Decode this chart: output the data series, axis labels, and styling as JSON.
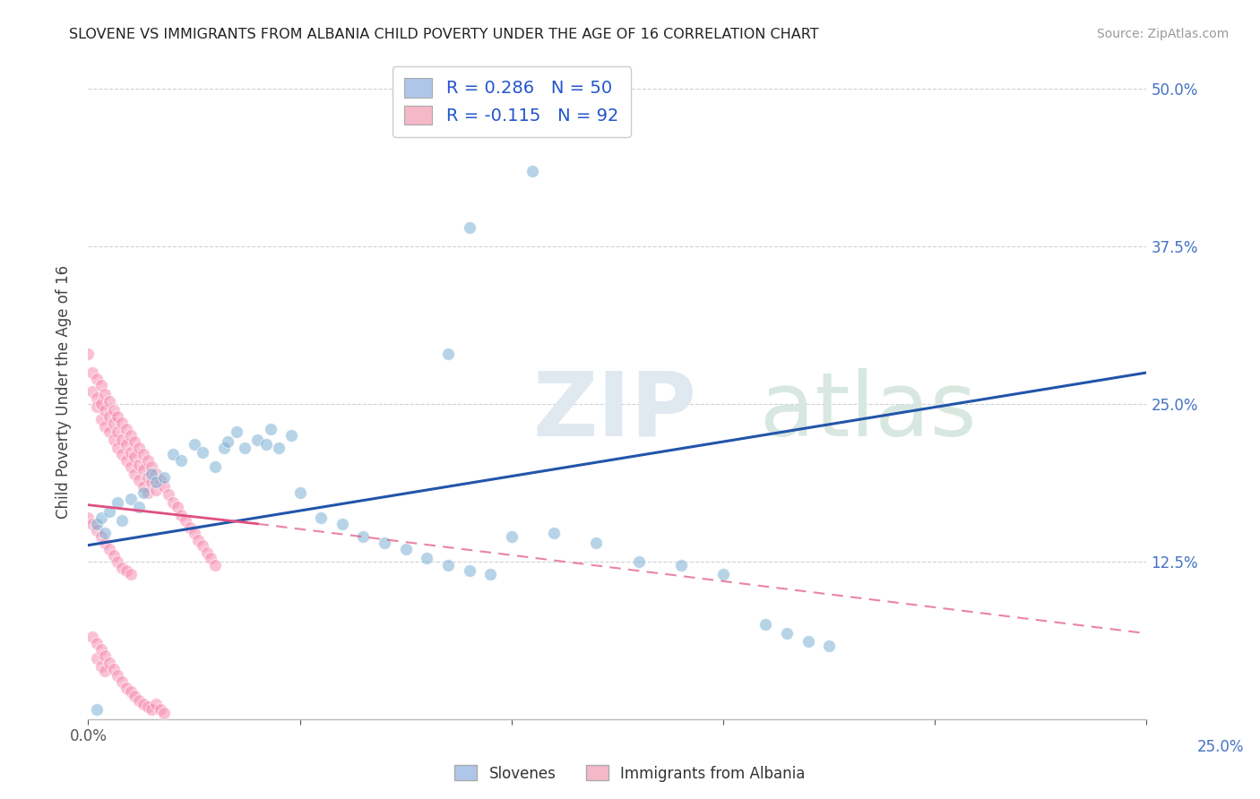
{
  "title": "SLOVENE VS IMMIGRANTS FROM ALBANIA CHILD POVERTY UNDER THE AGE OF 16 CORRELATION CHART",
  "source": "Source: ZipAtlas.com",
  "ylabel": "Child Poverty Under the Age of 16",
  "xlim": [
    0.0,
    0.25
  ],
  "ylim": [
    0.0,
    0.52
  ],
  "yticks": [
    0.0,
    0.125,
    0.25,
    0.375,
    0.5
  ],
  "xticks": [
    0.0,
    0.05,
    0.1,
    0.15,
    0.2,
    0.25
  ],
  "slovene_color": "#7bafd4",
  "albania_color": "#f78fb3",
  "slovene_line_color": "#2255aa",
  "albania_line_color": "#e05080",
  "slovene_scatter": [
    [
      0.002,
      0.155
    ],
    [
      0.003,
      0.16
    ],
    [
      0.004,
      0.148
    ],
    [
      0.005,
      0.165
    ],
    [
      0.007,
      0.172
    ],
    [
      0.008,
      0.158
    ],
    [
      0.01,
      0.175
    ],
    [
      0.012,
      0.168
    ],
    [
      0.013,
      0.18
    ],
    [
      0.015,
      0.195
    ],
    [
      0.016,
      0.188
    ],
    [
      0.018,
      0.192
    ],
    [
      0.02,
      0.21
    ],
    [
      0.022,
      0.205
    ],
    [
      0.025,
      0.218
    ],
    [
      0.027,
      0.212
    ],
    [
      0.03,
      0.2
    ],
    [
      0.032,
      0.215
    ],
    [
      0.033,
      0.22
    ],
    [
      0.035,
      0.228
    ],
    [
      0.037,
      0.215
    ],
    [
      0.04,
      0.222
    ],
    [
      0.042,
      0.218
    ],
    [
      0.043,
      0.23
    ],
    [
      0.045,
      0.215
    ],
    [
      0.048,
      0.225
    ],
    [
      0.05,
      0.18
    ],
    [
      0.055,
      0.16
    ],
    [
      0.06,
      0.155
    ],
    [
      0.065,
      0.145
    ],
    [
      0.07,
      0.14
    ],
    [
      0.075,
      0.135
    ],
    [
      0.08,
      0.128
    ],
    [
      0.085,
      0.122
    ],
    [
      0.09,
      0.118
    ],
    [
      0.095,
      0.115
    ],
    [
      0.1,
      0.145
    ],
    [
      0.11,
      0.148
    ],
    [
      0.12,
      0.14
    ],
    [
      0.13,
      0.125
    ],
    [
      0.14,
      0.122
    ],
    [
      0.15,
      0.115
    ],
    [
      0.16,
      0.075
    ],
    [
      0.165,
      0.068
    ],
    [
      0.17,
      0.062
    ],
    [
      0.175,
      0.058
    ],
    [
      0.09,
      0.39
    ],
    [
      0.105,
      0.435
    ],
    [
      0.085,
      0.29
    ],
    [
      0.002,
      0.008
    ]
  ],
  "albania_scatter": [
    [
      0.0,
      0.29
    ],
    [
      0.001,
      0.275
    ],
    [
      0.001,
      0.26
    ],
    [
      0.002,
      0.27
    ],
    [
      0.002,
      0.255
    ],
    [
      0.002,
      0.248
    ],
    [
      0.003,
      0.265
    ],
    [
      0.003,
      0.25
    ],
    [
      0.003,
      0.238
    ],
    [
      0.004,
      0.258
    ],
    [
      0.004,
      0.245
    ],
    [
      0.004,
      0.232
    ],
    [
      0.005,
      0.252
    ],
    [
      0.005,
      0.24
    ],
    [
      0.005,
      0.228
    ],
    [
      0.006,
      0.245
    ],
    [
      0.006,
      0.235
    ],
    [
      0.006,
      0.222
    ],
    [
      0.007,
      0.24
    ],
    [
      0.007,
      0.228
    ],
    [
      0.007,
      0.215
    ],
    [
      0.008,
      0.235
    ],
    [
      0.008,
      0.222
    ],
    [
      0.008,
      0.21
    ],
    [
      0.009,
      0.23
    ],
    [
      0.009,
      0.218
    ],
    [
      0.009,
      0.205
    ],
    [
      0.01,
      0.225
    ],
    [
      0.01,
      0.212
    ],
    [
      0.01,
      0.2
    ],
    [
      0.011,
      0.22
    ],
    [
      0.011,
      0.208
    ],
    [
      0.011,
      0.195
    ],
    [
      0.012,
      0.215
    ],
    [
      0.012,
      0.202
    ],
    [
      0.012,
      0.19
    ],
    [
      0.013,
      0.21
    ],
    [
      0.013,
      0.198
    ],
    [
      0.013,
      0.185
    ],
    [
      0.014,
      0.205
    ],
    [
      0.014,
      0.192
    ],
    [
      0.014,
      0.18
    ],
    [
      0.015,
      0.2
    ],
    [
      0.015,
      0.188
    ],
    [
      0.016,
      0.195
    ],
    [
      0.016,
      0.182
    ],
    [
      0.017,
      0.19
    ],
    [
      0.018,
      0.185
    ],
    [
      0.019,
      0.178
    ],
    [
      0.02,
      0.172
    ],
    [
      0.021,
      0.168
    ],
    [
      0.022,
      0.162
    ],
    [
      0.023,
      0.158
    ],
    [
      0.024,
      0.152
    ],
    [
      0.025,
      0.148
    ],
    [
      0.026,
      0.142
    ],
    [
      0.027,
      0.138
    ],
    [
      0.028,
      0.132
    ],
    [
      0.029,
      0.128
    ],
    [
      0.03,
      0.122
    ],
    [
      0.001,
      0.065
    ],
    [
      0.002,
      0.06
    ],
    [
      0.002,
      0.048
    ],
    [
      0.003,
      0.055
    ],
    [
      0.003,
      0.042
    ],
    [
      0.004,
      0.05
    ],
    [
      0.004,
      0.038
    ],
    [
      0.005,
      0.045
    ],
    [
      0.006,
      0.04
    ],
    [
      0.007,
      0.035
    ],
    [
      0.008,
      0.03
    ],
    [
      0.009,
      0.025
    ],
    [
      0.01,
      0.022
    ],
    [
      0.011,
      0.018
    ],
    [
      0.012,
      0.015
    ],
    [
      0.013,
      0.012
    ],
    [
      0.014,
      0.01
    ],
    [
      0.015,
      0.008
    ],
    [
      0.016,
      0.012
    ],
    [
      0.017,
      0.008
    ],
    [
      0.018,
      0.005
    ],
    [
      0.0,
      0.16
    ],
    [
      0.001,
      0.155
    ],
    [
      0.002,
      0.15
    ],
    [
      0.003,
      0.145
    ],
    [
      0.004,
      0.14
    ],
    [
      0.005,
      0.135
    ],
    [
      0.006,
      0.13
    ],
    [
      0.007,
      0.125
    ],
    [
      0.008,
      0.12
    ],
    [
      0.009,
      0.118
    ],
    [
      0.01,
      0.115
    ]
  ],
  "slovene_line": [
    [
      0.0,
      0.138
    ],
    [
      0.25,
      0.275
    ]
  ],
  "albania_line_solid": [
    [
      0.0,
      0.17
    ],
    [
      0.04,
      0.155
    ]
  ],
  "albania_line_dashed": [
    [
      0.04,
      0.155
    ],
    [
      0.25,
      0.068
    ]
  ],
  "background_color": "#ffffff",
  "grid_color": "#cccccc"
}
